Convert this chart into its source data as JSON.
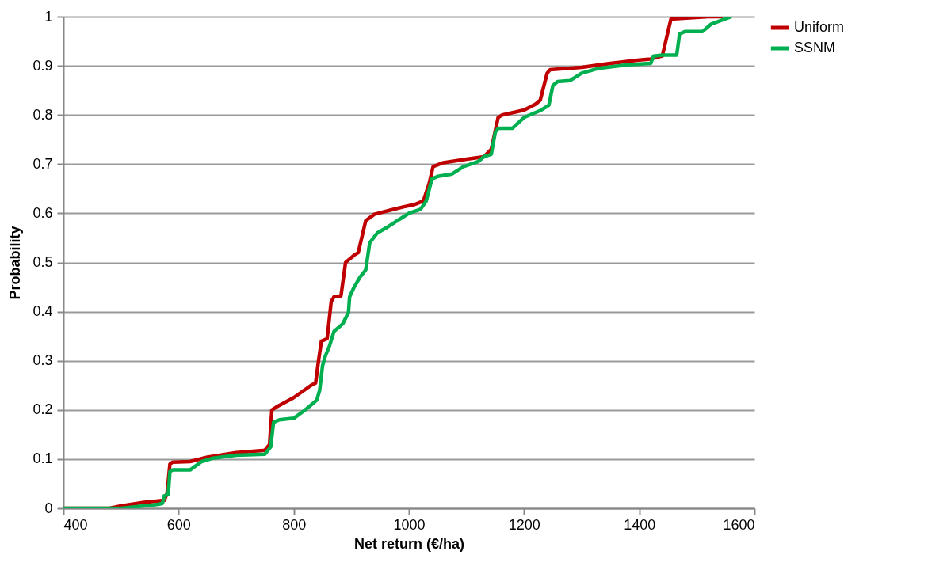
{
  "chart_data": {
    "type": "line",
    "xlabel": "Net return (€/ha)",
    "ylabel": "Probability",
    "xlim": [
      400,
      1600
    ],
    "xticks": [
      400,
      600,
      800,
      1000,
      1200,
      1400,
      1600
    ],
    "ylim": [
      0,
      1
    ],
    "yticks": [
      0,
      0.1,
      0.2,
      0.3,
      0.4,
      0.5,
      0.6,
      0.7,
      0.8,
      0.9,
      1
    ],
    "grid": "y",
    "legend": "right",
    "marker": "none",
    "line_style": "solid",
    "series": [
      {
        "name": "Uniform",
        "color": "#c00000",
        "x": [
          400,
          480,
          500,
          540,
          575,
          580,
          585,
          590,
          620,
          650,
          700,
          750,
          758,
          762,
          770,
          800,
          830,
          838,
          843,
          848,
          858,
          865,
          870,
          882,
          890,
          895,
          905,
          912,
          925,
          940,
          970,
          990,
          1010,
          1025,
          1035,
          1042,
          1060,
          1100,
          1130,
          1143,
          1155,
          1162,
          1200,
          1220,
          1228,
          1240,
          1245,
          1300,
          1350,
          1400,
          1420,
          1440,
          1448,
          1455,
          1520,
          1545
        ],
        "values": [
          0,
          0,
          0.005,
          0.012,
          0.016,
          0.03,
          0.09,
          0.094,
          0.095,
          0.104,
          0.113,
          0.118,
          0.13,
          0.2,
          0.206,
          0.225,
          0.25,
          0.255,
          0.3,
          0.34,
          0.345,
          0.42,
          0.43,
          0.432,
          0.5,
          0.505,
          0.515,
          0.52,
          0.585,
          0.598,
          0.607,
          0.613,
          0.618,
          0.625,
          0.66,
          0.695,
          0.703,
          0.71,
          0.715,
          0.73,
          0.795,
          0.8,
          0.81,
          0.822,
          0.83,
          0.885,
          0.892,
          0.897,
          0.905,
          0.912,
          0.914,
          0.92,
          0.96,
          0.995,
          1,
          1
        ]
      },
      {
        "name": "SSNM",
        "color": "#00b050",
        "x": [
          400,
          500,
          540,
          565,
          572,
          575,
          582,
          585,
          590,
          620,
          640,
          660,
          700,
          750,
          760,
          765,
          775,
          800,
          820,
          840,
          845,
          850,
          855,
          862,
          870,
          885,
          895,
          897,
          905,
          915,
          925,
          932,
          945,
          960,
          980,
          1000,
          1020,
          1030,
          1040,
          1050,
          1075,
          1095,
          1120,
          1130,
          1143,
          1150,
          1155,
          1180,
          1200,
          1230,
          1243,
          1250,
          1258,
          1280,
          1300,
          1330,
          1380,
          1420,
          1425,
          1440,
          1465,
          1470,
          1480,
          1510,
          1525,
          1560
        ],
        "values": [
          0,
          0,
          0.005,
          0.008,
          0.01,
          0.025,
          0.028,
          0.075,
          0.078,
          0.078,
          0.095,
          0.102,
          0.108,
          0.11,
          0.125,
          0.175,
          0.18,
          0.183,
          0.2,
          0.22,
          0.24,
          0.29,
          0.31,
          0.33,
          0.36,
          0.375,
          0.398,
          0.43,
          0.45,
          0.47,
          0.485,
          0.54,
          0.56,
          0.57,
          0.585,
          0.6,
          0.608,
          0.625,
          0.67,
          0.675,
          0.68,
          0.695,
          0.705,
          0.715,
          0.72,
          0.765,
          0.773,
          0.773,
          0.795,
          0.81,
          0.82,
          0.86,
          0.868,
          0.87,
          0.885,
          0.895,
          0.902,
          0.905,
          0.92,
          0.922,
          0.922,
          0.965,
          0.97,
          0.97,
          0.985,
          1
        ]
      }
    ]
  }
}
